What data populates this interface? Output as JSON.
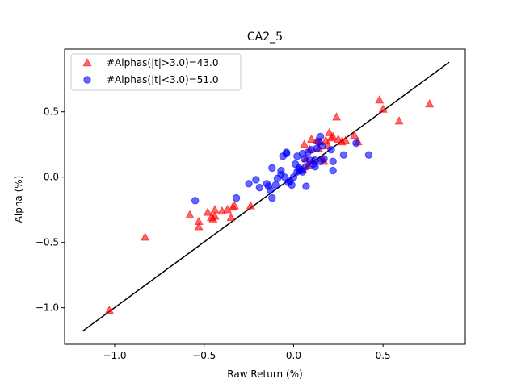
{
  "chart_data": {
    "type": "scatter",
    "title": "CA2_5",
    "xlabel": "Raw Return (%)",
    "ylabel": "Alpha (%)",
    "xlim": [
      -1.28,
      0.96
    ],
    "ylim": [
      -1.28,
      0.98
    ],
    "xticks": [
      -1.0,
      -0.5,
      0.0,
      0.5
    ],
    "xtick_labels": [
      "−1.0",
      "−0.5",
      "0.0",
      "0.5"
    ],
    "yticks": [
      -1.0,
      -0.5,
      0.0,
      0.5
    ],
    "ytick_labels": [
      "−1.0",
      "−0.5",
      "0.0",
      "0.5"
    ],
    "grid": false,
    "legend_position": "top-left",
    "series": [
      {
        "name": "#Alphas(|t|>3.0)=43.0",
        "marker": "triangle",
        "color": "#ff0000",
        "points": [
          [
            -1.03,
            -1.02
          ],
          [
            -0.83,
            -0.46
          ],
          [
            -0.58,
            -0.29
          ],
          [
            -0.53,
            -0.34
          ],
          [
            -0.53,
            -0.38
          ],
          [
            -0.48,
            -0.27
          ],
          [
            -0.46,
            -0.31
          ],
          [
            -0.45,
            -0.32
          ],
          [
            -0.44,
            -0.3
          ],
          [
            -0.44,
            -0.25
          ],
          [
            -0.4,
            -0.26
          ],
          [
            -0.37,
            -0.25
          ],
          [
            -0.35,
            -0.31
          ],
          [
            -0.34,
            -0.23
          ],
          [
            -0.33,
            -0.22
          ],
          [
            -0.24,
            -0.22
          ],
          [
            0.05,
            0.06
          ],
          [
            0.06,
            0.25
          ],
          [
            0.07,
            0.14
          ],
          [
            0.08,
            0.09
          ],
          [
            0.09,
            0.21
          ],
          [
            0.1,
            0.29
          ],
          [
            0.11,
            0.13
          ],
          [
            0.13,
            0.28
          ],
          [
            0.14,
            0.22
          ],
          [
            0.15,
            0.27
          ],
          [
            0.16,
            0.14
          ],
          [
            0.17,
            0.12
          ],
          [
            0.18,
            0.28
          ],
          [
            0.19,
            0.24
          ],
          [
            0.2,
            0.34
          ],
          [
            0.21,
            0.3
          ],
          [
            0.22,
            0.31
          ],
          [
            0.24,
            0.46
          ],
          [
            0.25,
            0.29
          ],
          [
            0.27,
            0.27
          ],
          [
            0.29,
            0.28
          ],
          [
            0.34,
            0.32
          ],
          [
            0.36,
            0.27
          ],
          [
            0.48,
            0.59
          ],
          [
            0.5,
            0.52
          ],
          [
            0.59,
            0.43
          ],
          [
            0.76,
            0.56
          ]
        ]
      },
      {
        "name": "#Alphas(|t|<3.0)=51.0",
        "marker": "circle",
        "color": "#0000ff",
        "points": [
          [
            -0.55,
            -0.18
          ],
          [
            -0.32,
            -0.16
          ],
          [
            -0.25,
            -0.05
          ],
          [
            -0.21,
            -0.02
          ],
          [
            -0.19,
            -0.08
          ],
          [
            -0.15,
            -0.05
          ],
          [
            -0.14,
            -0.07
          ],
          [
            -0.13,
            -0.1
          ],
          [
            -0.12,
            0.07
          ],
          [
            -0.12,
            -0.16
          ],
          [
            -0.1,
            -0.06
          ],
          [
            -0.09,
            -0.01
          ],
          [
            -0.07,
            0.02
          ],
          [
            -0.07,
            0.05
          ],
          [
            -0.06,
            0.16
          ],
          [
            -0.05,
            0.0
          ],
          [
            -0.04,
            0.18
          ],
          [
            -0.04,
            0.19
          ],
          [
            -0.03,
            -0.04
          ],
          [
            -0.02,
            -0.03
          ],
          [
            -0.01,
            -0.06
          ],
          [
            0.0,
            0.0
          ],
          [
            0.01,
            0.1
          ],
          [
            0.02,
            0.04
          ],
          [
            0.02,
            0.16
          ],
          [
            0.03,
            0.07
          ],
          [
            0.03,
            0.06
          ],
          [
            0.04,
            0.05
          ],
          [
            0.05,
            0.04
          ],
          [
            0.05,
            0.18
          ],
          [
            0.06,
            0.14
          ],
          [
            0.07,
            0.08
          ],
          [
            0.07,
            -0.07
          ],
          [
            0.08,
            0.19
          ],
          [
            0.09,
            0.13
          ],
          [
            0.1,
            0.21
          ],
          [
            0.11,
            0.1
          ],
          [
            0.12,
            0.13
          ],
          [
            0.12,
            0.08
          ],
          [
            0.13,
            0.22
          ],
          [
            0.14,
            0.27
          ],
          [
            0.15,
            0.31
          ],
          [
            0.15,
            0.12
          ],
          [
            0.16,
            0.24
          ],
          [
            0.17,
            0.14
          ],
          [
            0.21,
            0.21
          ],
          [
            0.22,
            0.12
          ],
          [
            0.22,
            0.05
          ],
          [
            0.28,
            0.17
          ],
          [
            0.35,
            0.26
          ],
          [
            0.42,
            0.17
          ]
        ]
      }
    ],
    "reference_line": {
      "color": "#000000",
      "points": [
        [
          -1.18,
          -1.18
        ],
        [
          0.87,
          0.88
        ]
      ]
    }
  }
}
